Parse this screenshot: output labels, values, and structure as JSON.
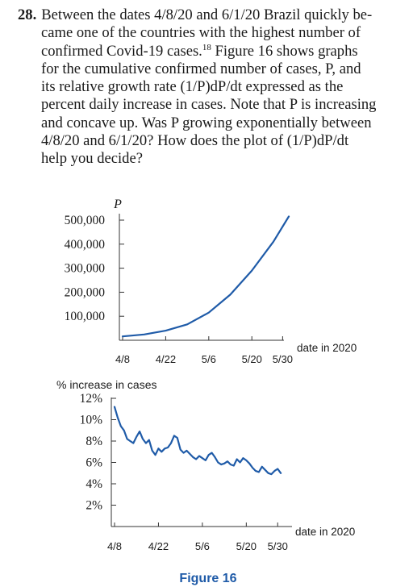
{
  "problem": {
    "number": "28.",
    "line1": "Between the dates 4/8/20 and 6/1/20 Brazil quickly be-",
    "line2": "came one of the countries with the highest number of",
    "line3a": "confirmed Covid-19 cases.",
    "footnote": "18",
    "line3b": " Figure 16 shows graphs",
    "line4": "for the cumulative confirmed number of cases, P, and",
    "line5": "its relative growth rate (1/P)dP/dt expressed as the",
    "line6": "percent daily increase in cases. Note that P is increasing",
    "line7": "and concave up. Was P growing exponentially between",
    "line8": "4/8/20 and 6/1/20? How does the plot of (1/P)dP/dt",
    "line9": "help you decide?"
  },
  "figure_caption": "Figure 16",
  "colors": {
    "curve": "#1f5ba8",
    "axis": "#333333",
    "text": "#1a1a1a"
  },
  "chart_data": [
    {
      "type": "line",
      "ylabel": "P",
      "xlabel": "date in 2020",
      "x_ticks": [
        "4/8",
        "4/22",
        "5/6",
        "5/20",
        "5/30"
      ],
      "y_ticks": [
        "100,000",
        "200,000",
        "300,000",
        "400,000",
        "500,000"
      ],
      "y_tick_values": [
        100000,
        200000,
        300000,
        400000,
        500000
      ],
      "ylim": [
        0,
        560000
      ],
      "x_day_range": [
        0,
        54
      ],
      "x_tick_days": [
        0,
        14,
        28,
        42,
        52
      ],
      "series": [
        {
          "x": [
            0,
            7,
            14,
            21,
            28,
            35,
            42,
            49,
            54
          ],
          "y": [
            16000,
            24000,
            40000,
            66000,
            115000,
            190000,
            290000,
            410000,
            515000
          ]
        }
      ]
    },
    {
      "type": "line",
      "ylabel": "% increase in cases",
      "xlabel": "date in 2020",
      "x_ticks": [
        "4/8",
        "4/22",
        "5/6",
        "5/20",
        "5/30"
      ],
      "y_ticks": [
        "2%",
        "4%",
        "6%",
        "8%",
        "10%",
        "12%"
      ],
      "y_tick_values": [
        2,
        4,
        6,
        8,
        10,
        12
      ],
      "ylim": [
        0,
        13
      ],
      "x_day_range": [
        0,
        54
      ],
      "x_tick_days": [
        0,
        14,
        28,
        42,
        52
      ],
      "series": [
        {
          "x": [
            0,
            1,
            2,
            3,
            4,
            5,
            6,
            7,
            8,
            9,
            10,
            11,
            12,
            13,
            14,
            15,
            16,
            17,
            18,
            19,
            20,
            21,
            22,
            23,
            24,
            25,
            26,
            27,
            28,
            29,
            30,
            31,
            32,
            33,
            34,
            35,
            36,
            37,
            38,
            39,
            40,
            41,
            42,
            43,
            44,
            45,
            46,
            47,
            48,
            49,
            50,
            51,
            52,
            53
          ],
          "y": [
            11.2,
            10.2,
            9.4,
            9.0,
            8.2,
            8.0,
            7.8,
            8.4,
            8.9,
            8.2,
            7.8,
            8.1,
            7.1,
            6.7,
            7.3,
            7.0,
            7.3,
            7.4,
            7.8,
            8.5,
            8.3,
            7.2,
            6.9,
            7.1,
            6.8,
            6.5,
            6.3,
            6.6,
            6.4,
            6.2,
            6.7,
            6.9,
            6.5,
            6.0,
            5.8,
            5.9,
            6.1,
            5.8,
            5.7,
            6.3,
            6.0,
            6.4,
            6.2,
            5.9,
            5.5,
            5.2,
            5.1,
            5.6,
            5.3,
            5.0,
            4.9,
            5.2,
            5.4,
            5.0
          ]
        }
      ]
    }
  ]
}
